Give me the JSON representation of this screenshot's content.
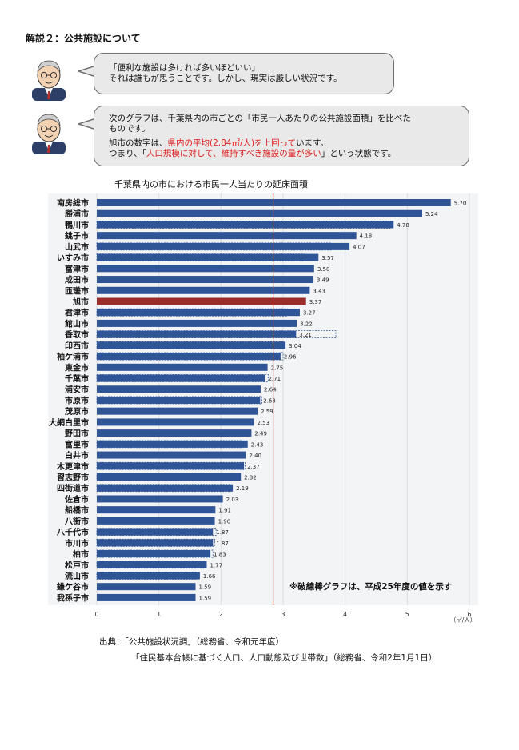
{
  "heading": "解説２：公共施設について",
  "bubble1": {
    "line1": "「便利な施設は多ければ多いほどいい」",
    "line2": "それは誰もが思うことです。しかし、現実は厳しい状況です。"
  },
  "bubble2": {
    "line1": "次のグラフは、千葉県内の市ごとの「市民一人あたりの公共施設面積」を比べた",
    "line2": "ものです。",
    "line3a": "旭市の数字は、",
    "line3b": "県内の平均(2.84㎡/人)を上回って",
    "line3c": "います。",
    "line4a": "つまり、「",
    "line4b": "人口規模に対して、維持すべき施設の量が多い",
    "line4c": "」という状態です。"
  },
  "colors": {
    "bar": "#2f5597",
    "highlight": "#9b2d2d",
    "average_line": "#e03030"
  },
  "chart_data": {
    "type": "bar",
    "orientation": "horizontal",
    "title": "千葉県内の市における市民一人当たりの延床面積",
    "unit_label": "（㎡/人）",
    "xlim": [
      0,
      6
    ],
    "x_ticks": [
      "0",
      "1",
      "2",
      "3",
      "4",
      "5",
      "6"
    ],
    "average": 2.84,
    "highlight_category": "旭市",
    "note": "※破線棒グラフは、平成25年度の値を示す",
    "categories": [
      "南房総市",
      "勝浦市",
      "鴨川市",
      "銚子市",
      "山武市",
      "いすみ市",
      "富津市",
      "成田市",
      "匝瑳市",
      "旭市",
      "君津市",
      "館山市",
      "香取市",
      "印西市",
      "袖ケ浦市",
      "東金市",
      "千葉市",
      "浦安市",
      "市原市",
      "茂原市",
      "大網白里市",
      "野田市",
      "富里市",
      "白井市",
      "木更津市",
      "習志野市",
      "四街道市",
      "佐倉市",
      "船橋市",
      "八街市",
      "八千代市",
      "市川市",
      "柏市",
      "松戸市",
      "流山市",
      "鎌ケ谷市",
      "我孫子市"
    ],
    "values": [
      5.7,
      5.24,
      4.78,
      4.18,
      4.07,
      3.57,
      3.5,
      3.49,
      3.43,
      3.37,
      3.27,
      3.22,
      3.21,
      3.04,
      2.96,
      2.75,
      2.71,
      2.64,
      2.63,
      2.59,
      2.53,
      2.49,
      2.43,
      2.4,
      2.37,
      2.32,
      2.19,
      2.03,
      1.91,
      1.9,
      1.87,
      1.87,
      1.83,
      1.77,
      1.66,
      1.59,
      1.59
    ],
    "value_labels": [
      "5.70",
      "5.24",
      "4.78",
      "4.18",
      "4.07",
      "3.57",
      "3.50",
      "3.49",
      "3.43",
      "3.37",
      "3.27",
      "3.22",
      "3.21",
      "3.04",
      "2.96",
      "2.75",
      "2.71",
      "2.64",
      "2.63",
      "2.59",
      "2.53",
      "2.49",
      "2.43",
      "2.40",
      "2.37",
      "2.32",
      "2.19",
      "2.03",
      "1.91",
      "1.90",
      "1.87",
      "1.87",
      "1.83",
      "1.77",
      "1.66",
      "1.59",
      "1.59"
    ],
    "dashed_series": {
      "name": "平成25年度",
      "values": [
        null,
        null,
        4.72,
        null,
        3.77,
        3.34,
        null,
        null,
        null,
        null,
        3.07,
        null,
        3.85,
        3.0,
        3.0,
        null,
        2.76,
        null,
        2.66,
        null,
        null,
        null,
        2.32,
        null,
        2.39,
        2.23,
        2.16,
        null,
        null,
        null,
        1.92,
        1.9,
        1.87,
        1.73,
        1.62,
        null,
        null
      ]
    }
  },
  "source": {
    "line1": "出典：「公共施設状況調」（総務省、令和元年度）",
    "line2": "「住民基本台帳に基づく人口、人口動態及び世帯数」（総務省、令和2年1月1日）"
  }
}
